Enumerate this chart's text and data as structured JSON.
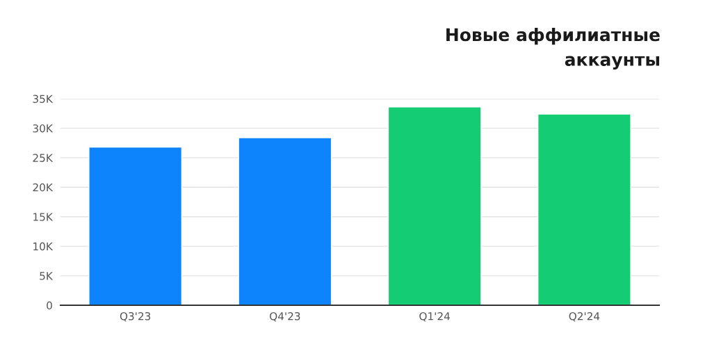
{
  "chart_data": {
    "type": "bar",
    "title": "Новые аффилиатные\nаккаунты",
    "categories": [
      "Q3'23",
      "Q4'23",
      "Q1'24",
      "Q2'24"
    ],
    "values": [
      26800,
      28400,
      33600,
      32400
    ],
    "colors": [
      "#0d84fb",
      "#0d84fb",
      "#14cc72",
      "#14cc72"
    ],
    "ylim": [
      0,
      35000
    ],
    "yticks": [
      {
        "value": 0,
        "label": "0"
      },
      {
        "value": 5000,
        "label": "5K"
      },
      {
        "value": 10000,
        "label": "10K"
      },
      {
        "value": 15000,
        "label": "15K"
      },
      {
        "value": 20000,
        "label": "20K"
      },
      {
        "value": 25000,
        "label": "25K"
      },
      {
        "value": 30000,
        "label": "30K"
      },
      {
        "value": 35000,
        "label": "35K"
      }
    ],
    "grid": "y"
  }
}
